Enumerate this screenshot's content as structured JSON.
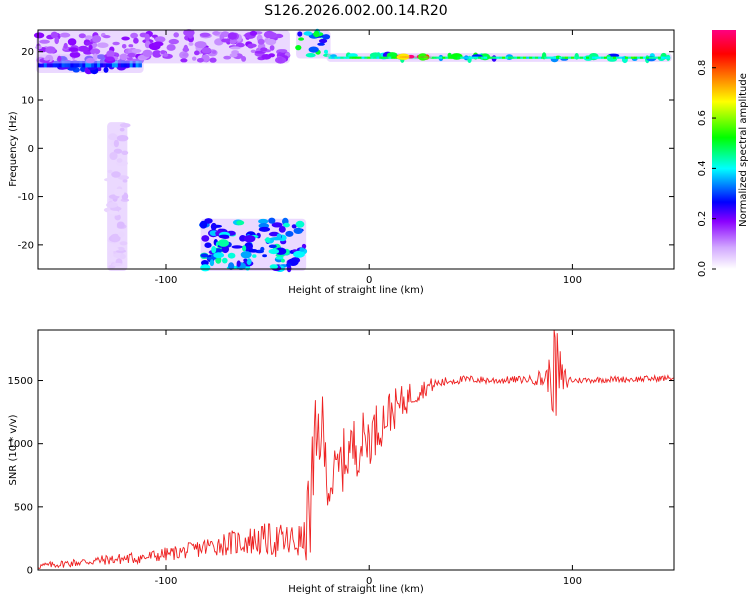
{
  "title": "S126.2026.002.00.14.R20",
  "chart_data": [
    {
      "type": "heatmap",
      "xlabel": "Height of straight line (km)",
      "ylabel": "Frequency (Hz)",
      "xlim": [
        -163,
        150
      ],
      "ylim": [
        -25,
        24.5
      ],
      "xticks": [
        -100,
        0,
        100
      ],
      "yticks": [
        -20,
        -10,
        0,
        10,
        20
      ],
      "colorbar": {
        "label": "Normalized spectral amplitude",
        "range": [
          0,
          0.95
        ],
        "ticks": [
          0.0,
          0.2,
          0.4,
          0.6,
          0.8
        ],
        "colors": [
          "#ffffff",
          "#d2a8ff",
          "#8a00ff",
          "#0000ff",
          "#00ffff",
          "#00ff00",
          "#ffff00",
          "#ff8000",
          "#ff0000",
          "#ff0080"
        ]
      },
      "features": [
        {
          "name": "left band",
          "x": [
            -163,
            -112
          ],
          "y": [
            16,
            19
          ],
          "amplitude": 0.35
        },
        {
          "name": "left upper scatter",
          "x": [
            -163,
            -40
          ],
          "y": [
            18,
            24
          ],
          "amplitude": 0.2
        },
        {
          "name": "upper arc",
          "x": [
            -35,
            -20
          ],
          "y": [
            19,
            24
          ],
          "amplitude": 0.5
        },
        {
          "name": "main band",
          "x": [
            -20,
            148
          ],
          "y": [
            18.3,
            19.3
          ],
          "amplitude": 0.5
        },
        {
          "name": "main band peak",
          "x": [
            15,
            30
          ],
          "y": [
            18.8,
            19.0
          ],
          "amplitude": 0.95
        },
        {
          "name": "lower feature",
          "x": [
            -82,
            -32
          ],
          "y": [
            -25,
            -15
          ],
          "amplitude": 0.45
        },
        {
          "name": "faint column",
          "x": [
            -128,
            -120
          ],
          "y": [
            -25,
            5
          ],
          "amplitude": 0.08
        }
      ]
    },
    {
      "type": "line",
      "xlabel": "Height of straight line (km)",
      "ylabel": "SNR (10 * v/v)",
      "xlim": [
        -163,
        150
      ],
      "ylim": [
        0,
        1900
      ],
      "xticks": [
        -100,
        0,
        100
      ],
      "yticks": [
        0,
        500,
        1000,
        1500
      ],
      "color": "#ee2222",
      "envelope": {
        "x": [
          -163,
          -150,
          -130,
          -110,
          -90,
          -75,
          -60,
          -50,
          -40,
          -32,
          -28,
          -24,
          -20,
          -15,
          -10,
          -5,
          0,
          5,
          10,
          15,
          20,
          25,
          30,
          40,
          50,
          60,
          70,
          80,
          88,
          92,
          95,
          100,
          110,
          120,
          130,
          140,
          150
        ],
        "y": [
          30,
          50,
          80,
          100,
          150,
          200,
          230,
          240,
          220,
          230,
          600,
          1200,
          650,
          800,
          950,
          1000,
          1050,
          1150,
          1250,
          1300,
          1380,
          1420,
          1460,
          1500,
          1510,
          1500,
          1505,
          1510,
          1520,
          1560,
          1500,
          1500,
          1505,
          1510,
          1510,
          1515,
          1520
        ]
      },
      "noise": {
        "x": [
          -163,
          -90,
          -40,
          -32,
          -28,
          -24,
          -20,
          -15,
          -5,
          5,
          15,
          25,
          35,
          50,
          80,
          88,
          92,
          95,
          100,
          150
        ],
        "amplitude": [
          25,
          60,
          150,
          150,
          600,
          400,
          180,
          250,
          250,
          200,
          150,
          80,
          40,
          30,
          30,
          120,
          450,
          150,
          25,
          25
        ]
      }
    }
  ]
}
